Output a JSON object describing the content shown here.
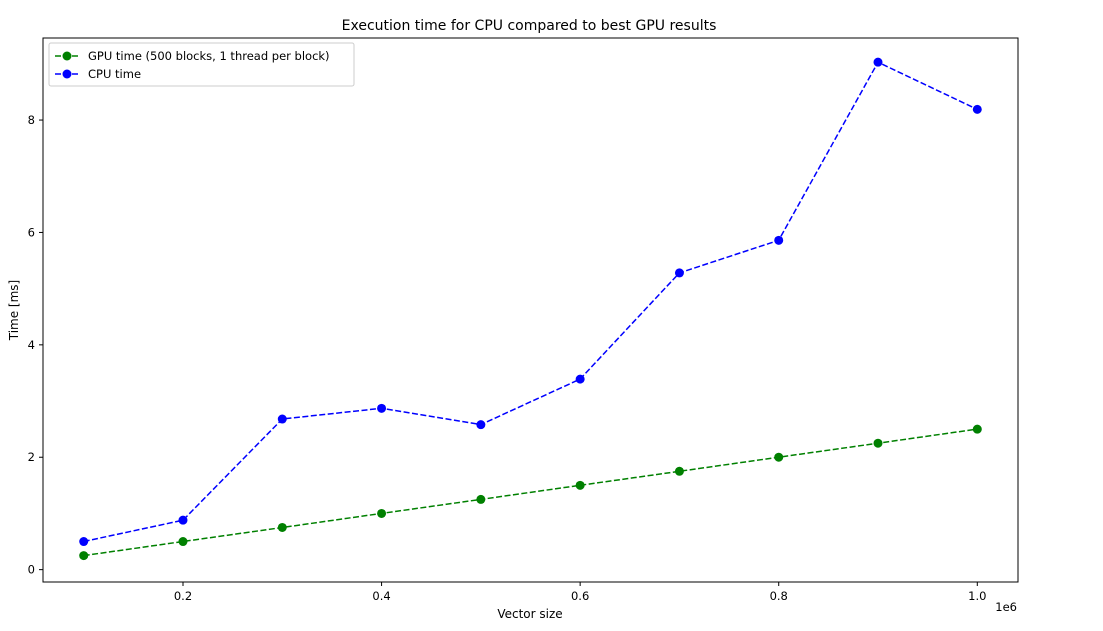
{
  "chart_data": {
    "type": "line",
    "title": "Execution time for CPU compared to best GPU results",
    "xlabel": "Vector size",
    "ylabel": "Time [ms]",
    "x_offset_label": "1e6",
    "x": [
      100000,
      200000,
      300000,
      400000,
      500000,
      600000,
      700000,
      800000,
      900000,
      1000000
    ],
    "xlim": [
      59000,
      1041000
    ],
    "ylim": [
      -0.22,
      9.46
    ],
    "x_ticks": [
      200000,
      400000,
      600000,
      800000,
      1000000
    ],
    "x_tick_labels": [
      "0.2",
      "0.4",
      "0.6",
      "0.8",
      "1.0"
    ],
    "y_ticks": [
      0,
      2,
      4,
      6,
      8
    ],
    "y_tick_labels": [
      "0",
      "2",
      "4",
      "6",
      "8"
    ],
    "grid": false,
    "legend_position": "top-left",
    "series": [
      {
        "name": "GPU time (500 blocks, 1 thread per block)",
        "color": "#008000",
        "line_style": "dashed",
        "marker": "circle",
        "values": [
          0.25,
          0.5,
          0.75,
          1.0,
          1.25,
          1.5,
          1.75,
          2.0,
          2.25,
          2.5
        ]
      },
      {
        "name": "CPU time",
        "color": "#0000ff",
        "line_style": "dashed",
        "marker": "circle",
        "values": [
          0.5,
          0.88,
          2.68,
          2.87,
          2.58,
          3.39,
          5.28,
          5.86,
          9.03,
          8.19
        ]
      }
    ]
  }
}
